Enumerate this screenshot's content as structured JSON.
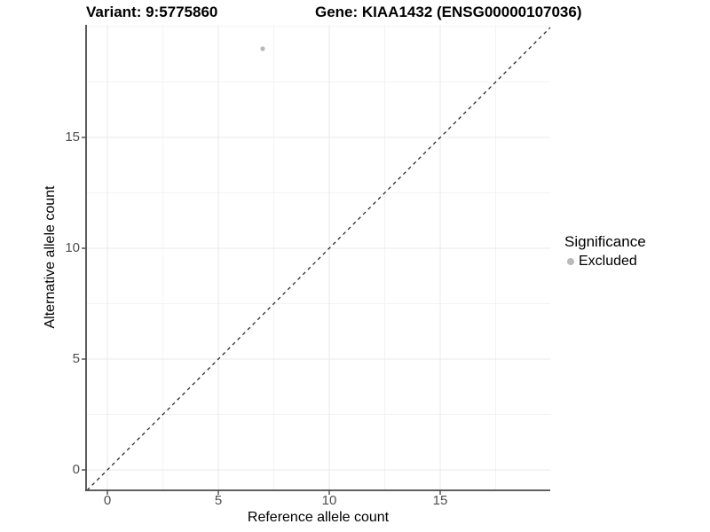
{
  "header": {
    "variant_title": "Variant: 9:5775860",
    "gene_title": "Gene: KIAA1432 (ENSG00000107036)"
  },
  "chart_data": {
    "type": "scatter",
    "title": "Variant: 9:5775860 — Gene: KIAA1432 (ENSG00000107036)",
    "xlabel": "Reference allele count",
    "ylabel": "Alternative allele count",
    "xlim": [
      -0.96,
      19.96
    ],
    "ylim": [
      -0.92,
      20.08
    ],
    "x_ticks": [
      0,
      5,
      10,
      15
    ],
    "y_ticks": [
      0,
      5,
      10,
      15
    ],
    "x_minor_gridlines": [
      2.5,
      7.5,
      12.5,
      17.5
    ],
    "y_minor_gridlines": [
      2.5,
      7.5,
      12.5,
      17.5,
      20
    ],
    "grid": "major and minor gridlines on white background",
    "points": [
      {
        "x": 7,
        "y": 19,
        "significance": "Excluded"
      }
    ],
    "reference_line": {
      "type": "identity (y = x)",
      "style": "dashed",
      "color": "#1a1a1a"
    },
    "legend": {
      "position": "right",
      "title": "Significance",
      "items": [
        {
          "label": "Excluded",
          "color": "#b9b9b9"
        }
      ]
    },
    "colors": {
      "point": "#b9b9b9",
      "axis_line": "#4a4a4a",
      "tick_label": "#4d4d4d",
      "grid_major": "#e8e8e8",
      "grid_minor": "#f3f3f3",
      "background": "#ffffff"
    }
  }
}
